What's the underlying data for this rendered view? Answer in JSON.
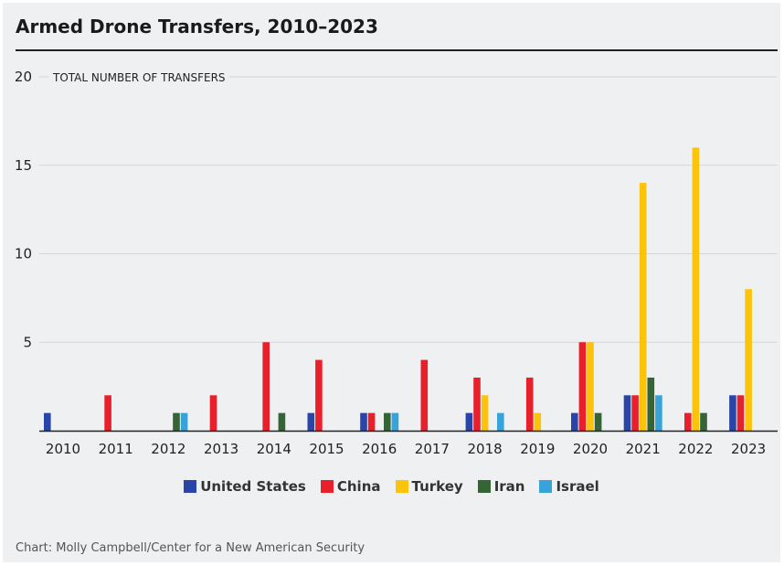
{
  "title": "Armed Drone Transfers, 2010–2023",
  "source": "Chart: Molly Campbell/Center for a New American Security",
  "chart_data": {
    "type": "bar",
    "title": "Armed Drone Transfers, 2010–2023",
    "ylabel": "TOTAL NUMBER OF TRANSFERS",
    "xlabel": "",
    "ylim": [
      0,
      20
    ],
    "yticks": [
      5,
      10,
      15,
      20
    ],
    "grid": true,
    "legend_position": "bottom",
    "categories": [
      "2010",
      "2011",
      "2012",
      "2013",
      "2014",
      "2015",
      "2016",
      "2017",
      "2018",
      "2019",
      "2020",
      "2021",
      "2022",
      "2023"
    ],
    "series": [
      {
        "name": "United States",
        "color": "#2a45a8",
        "values": [
          1,
          0,
          0,
          0,
          0,
          1,
          1,
          0,
          1,
          0,
          1,
          2,
          0,
          2
        ]
      },
      {
        "name": "China",
        "color": "#e8202c",
        "values": [
          0,
          2,
          0,
          2,
          5,
          4,
          1,
          4,
          3,
          3,
          5,
          2,
          1,
          2
        ]
      },
      {
        "name": "Turkey",
        "color": "#fcc30b",
        "values": [
          0,
          0,
          0,
          0,
          0,
          0,
          0,
          0,
          2,
          1,
          5,
          14,
          16,
          8
        ]
      },
      {
        "name": "Iran",
        "color": "#356435",
        "values": [
          0,
          0,
          1,
          0,
          1,
          0,
          1,
          0,
          0,
          0,
          1,
          3,
          1,
          0
        ]
      },
      {
        "name": "Israel",
        "color": "#38a3d9",
        "values": [
          0,
          0,
          1,
          0,
          0,
          0,
          1,
          0,
          1,
          0,
          0,
          2,
          0,
          0
        ]
      }
    ]
  }
}
